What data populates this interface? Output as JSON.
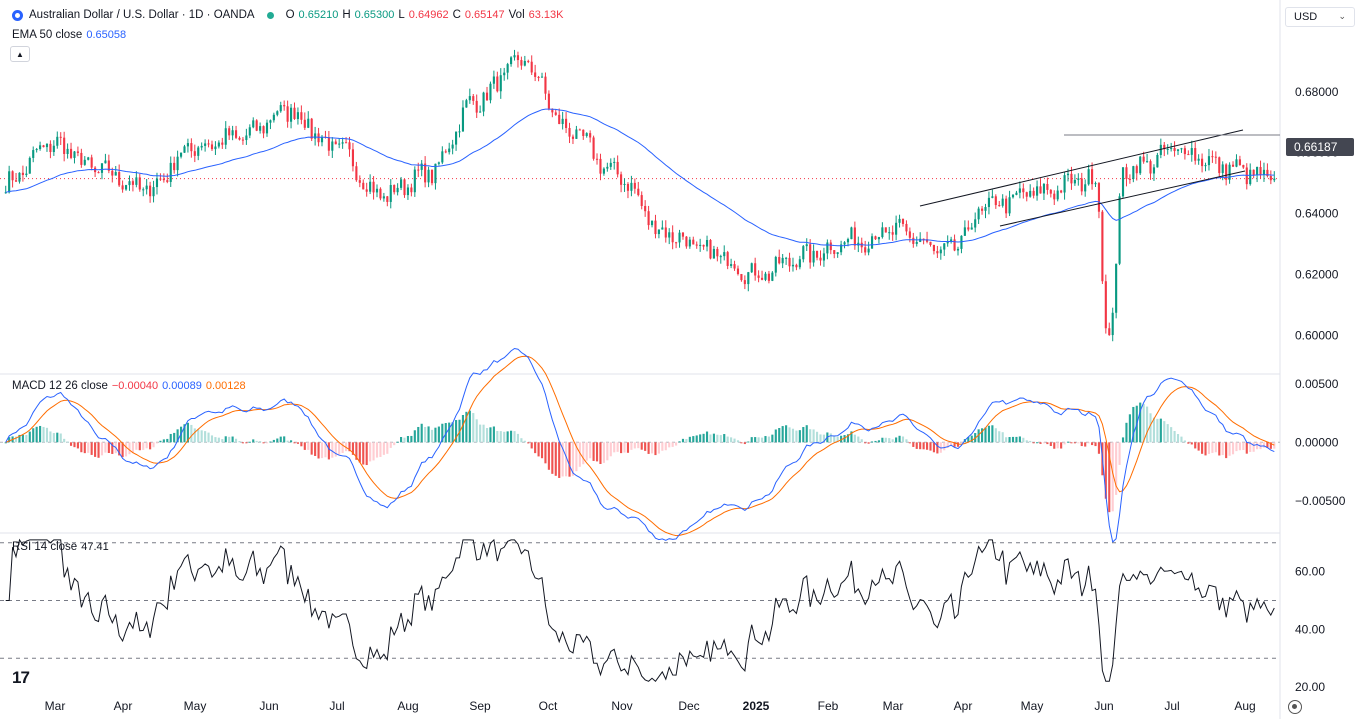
{
  "header": {
    "symbol_title": "Australian Dollar / U.S. Dollar · 1D · OANDA",
    "open_label": "O",
    "open": "0.65210",
    "high_label": "H",
    "high": "0.65300",
    "low_label": "L",
    "low": "0.64962",
    "close_label": "C",
    "close": "0.65147",
    "vol_label": "Vol",
    "vol": "63.13K",
    "currency": "USD"
  },
  "ema": {
    "label": "EMA 50 close",
    "value": "0.65058"
  },
  "macd": {
    "label": "MACD 12 26 close",
    "hist": "−0.00040",
    "macd": "0.00089",
    "signal": "0.00128"
  },
  "rsi": {
    "label": "RSI 14 close",
    "value": "47.41"
  },
  "price_tag": "0.66187",
  "colors": {
    "up": "#089981",
    "down": "#f23645",
    "ema": "#2962ff",
    "signal": "#ff6d00",
    "hist_up": "#26a69a",
    "hist_up_light": "#b2dfdb",
    "hist_dn": "#ef5350",
    "hist_dn_light": "#ffcdd2"
  },
  "icons": {
    "logo": "aud-usd-flag-icon",
    "status": "market-open-dot-icon",
    "collapse": "chevron-up-icon",
    "settings": "gear-icon",
    "brand": "tradingview-logo"
  },
  "brand_text": "17",
  "chart_data": [
    {
      "type": "candlestick",
      "title": "Australian Dollar / U.S. Dollar · 1D · OANDA",
      "x_labels": [
        "Mar",
        "Apr",
        "May",
        "Jun",
        "Jul",
        "Aug",
        "Sep",
        "Oct",
        "Nov",
        "Dec",
        "2025",
        "Feb",
        "Mar",
        "Apr",
        "May",
        "Jun",
        "Jul",
        "Aug"
      ],
      "y_ticks": [
        "0.68000",
        "0.66000",
        "0.64000",
        "0.62000",
        "0.60000"
      ],
      "ylim": [
        0.588,
        0.697
      ],
      "month_closes": [
        0.65,
        0.663,
        0.654,
        0.648,
        0.662,
        0.665,
        0.674,
        0.662,
        0.646,
        0.653,
        0.677,
        0.69,
        0.667,
        0.653,
        0.634,
        0.627,
        0.62,
        0.626,
        0.631,
        0.634,
        0.627,
        0.643,
        0.647,
        0.651,
        0.655,
        0.661,
        0.655,
        0.651
      ],
      "series": [
        {
          "name": "EMA 50 close",
          "last": 0.65058
        }
      ],
      "annotations": [
        "ascending channel",
        "horizontal level 0.66187"
      ],
      "last_close": 0.65147
    },
    {
      "type": "line",
      "title": "MACD 12 26 close",
      "y_ticks": [
        "0.00500",
        "0.00000",
        "−0.00500"
      ],
      "ylim": [
        -0.0075,
        0.0055
      ],
      "series_values": {
        "macd": 0.00089,
        "signal": 0.00128,
        "histogram": -0.0004
      }
    },
    {
      "type": "line",
      "title": "RSI 14 close",
      "y_ticks": [
        "60.00",
        "40.00",
        "20.00"
      ],
      "ylim": [
        19,
        72
      ],
      "bands": [
        70,
        50,
        30
      ],
      "last": 47.41
    }
  ]
}
